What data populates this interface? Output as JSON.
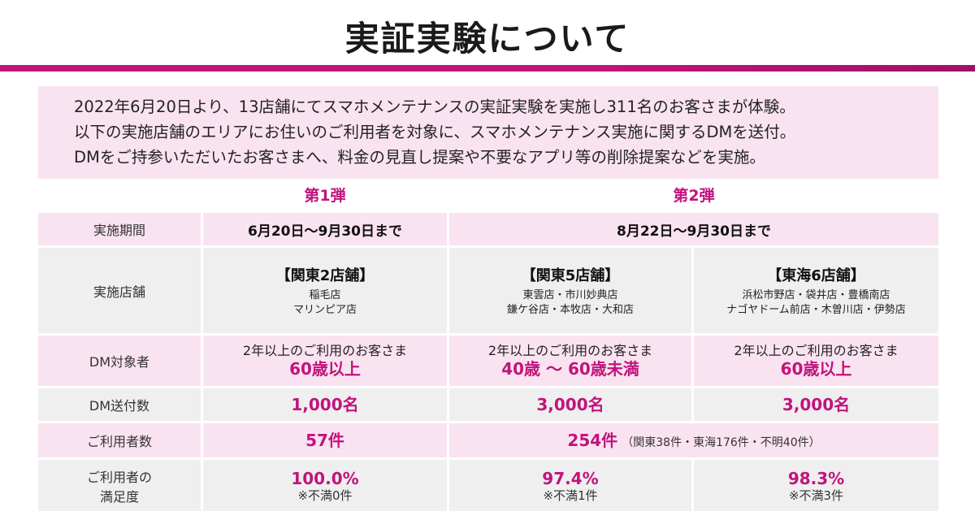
{
  "title": "実証実験について",
  "intro": [
    "2022年6月20日より、13店舗にてスマホメンテナンスの実証実験を実施し311名のお客さまが体験。",
    "以下の実施店舗のエリアにお住いのご利用者を対象に、スマホメンテナンス実施に関するDMを送付。",
    "DMをご持参いただいたお客さまへ、料金の見直し提案や不要なアプリ等の削除提案などを実施。"
  ],
  "waves": {
    "first": "第1弾",
    "second": "第2弾"
  },
  "rows": {
    "period": {
      "label": "実施期間",
      "first": "6月20日～9月30日まで",
      "second": "8月22日～9月30日まで"
    },
    "stores": {
      "label": "実施店舗",
      "cols": [
        {
          "region": "【関東2店舗】",
          "lines": [
            "稲毛店",
            "マリンピア店"
          ]
        },
        {
          "region": "【関東5店舗】",
          "lines": [
            "東雲店・市川妙典店",
            "鎌ケ谷店・本牧店・大和店"
          ]
        },
        {
          "region": "【東海6店舗】",
          "lines": [
            "浜松市野店・袋井店・豊橋南店",
            "ナゴヤドーム前店・木曽川店・伊勢店"
          ]
        }
      ]
    },
    "dm_target": {
      "label": "DM対象者",
      "cols": [
        {
          "text": "2年以上のご利用のお客さま",
          "age": "60歳以上"
        },
        {
          "text": "2年以上のご利用のお客さま",
          "age": "40歳 ～ 60歳未満"
        },
        {
          "text": "2年以上のご利用のお客さま",
          "age": "60歳以上"
        }
      ]
    },
    "dm_count": {
      "label": "DM送付数",
      "cols": [
        "1,000名",
        "3,000名",
        "3,000名"
      ]
    },
    "users": {
      "label": "ご利用者数",
      "first": "57件",
      "second": "254件",
      "second_detail": "（関東38件・東海176件・不明40件）"
    },
    "satisfaction": {
      "label_line1": "ご利用者の",
      "label_line2": "満足度",
      "cols": [
        {
          "value": "100.0%",
          "note": "※不満0件"
        },
        {
          "value": "97.4%",
          "note": "※不満1件"
        },
        {
          "value": "98.3%",
          "note": "※不満3件"
        }
      ]
    }
  },
  "colors": {
    "accent": "#c2137d",
    "pink_bg": "#fae3f0",
    "gray_bg": "#efefef"
  }
}
